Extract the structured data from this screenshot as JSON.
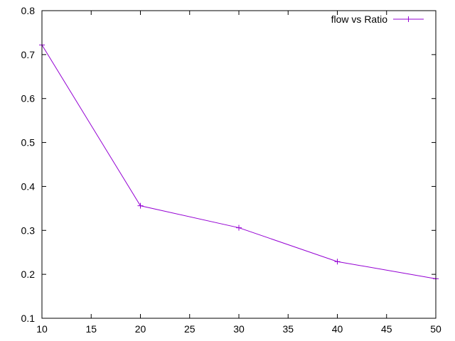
{
  "chart_data": {
    "type": "line",
    "title": "",
    "xlabel": "",
    "ylabel": "",
    "xlim": [
      10,
      50
    ],
    "ylim": [
      0.1,
      0.8
    ],
    "xticks": [
      10,
      15,
      20,
      25,
      30,
      35,
      40,
      45,
      50
    ],
    "yticks": [
      0.1,
      0.2,
      0.3,
      0.4,
      0.5,
      0.6,
      0.7,
      0.8
    ],
    "xtick_labels": [
      "10",
      "15",
      "20",
      "25",
      "30",
      "35",
      "40",
      "45",
      "50"
    ],
    "ytick_labels": [
      "0.1",
      "0.2",
      "0.3",
      "0.4",
      "0.5",
      "0.6",
      "0.7",
      "0.8"
    ],
    "grid": false,
    "legend_position": "top-right",
    "series": [
      {
        "name": "flow vs Ratio",
        "color": "#9400d3",
        "marker": "plus",
        "x": [
          10,
          20,
          30,
          40,
          50
        ],
        "y": [
          0.722,
          0.356,
          0.306,
          0.229,
          0.19
        ]
      }
    ]
  }
}
